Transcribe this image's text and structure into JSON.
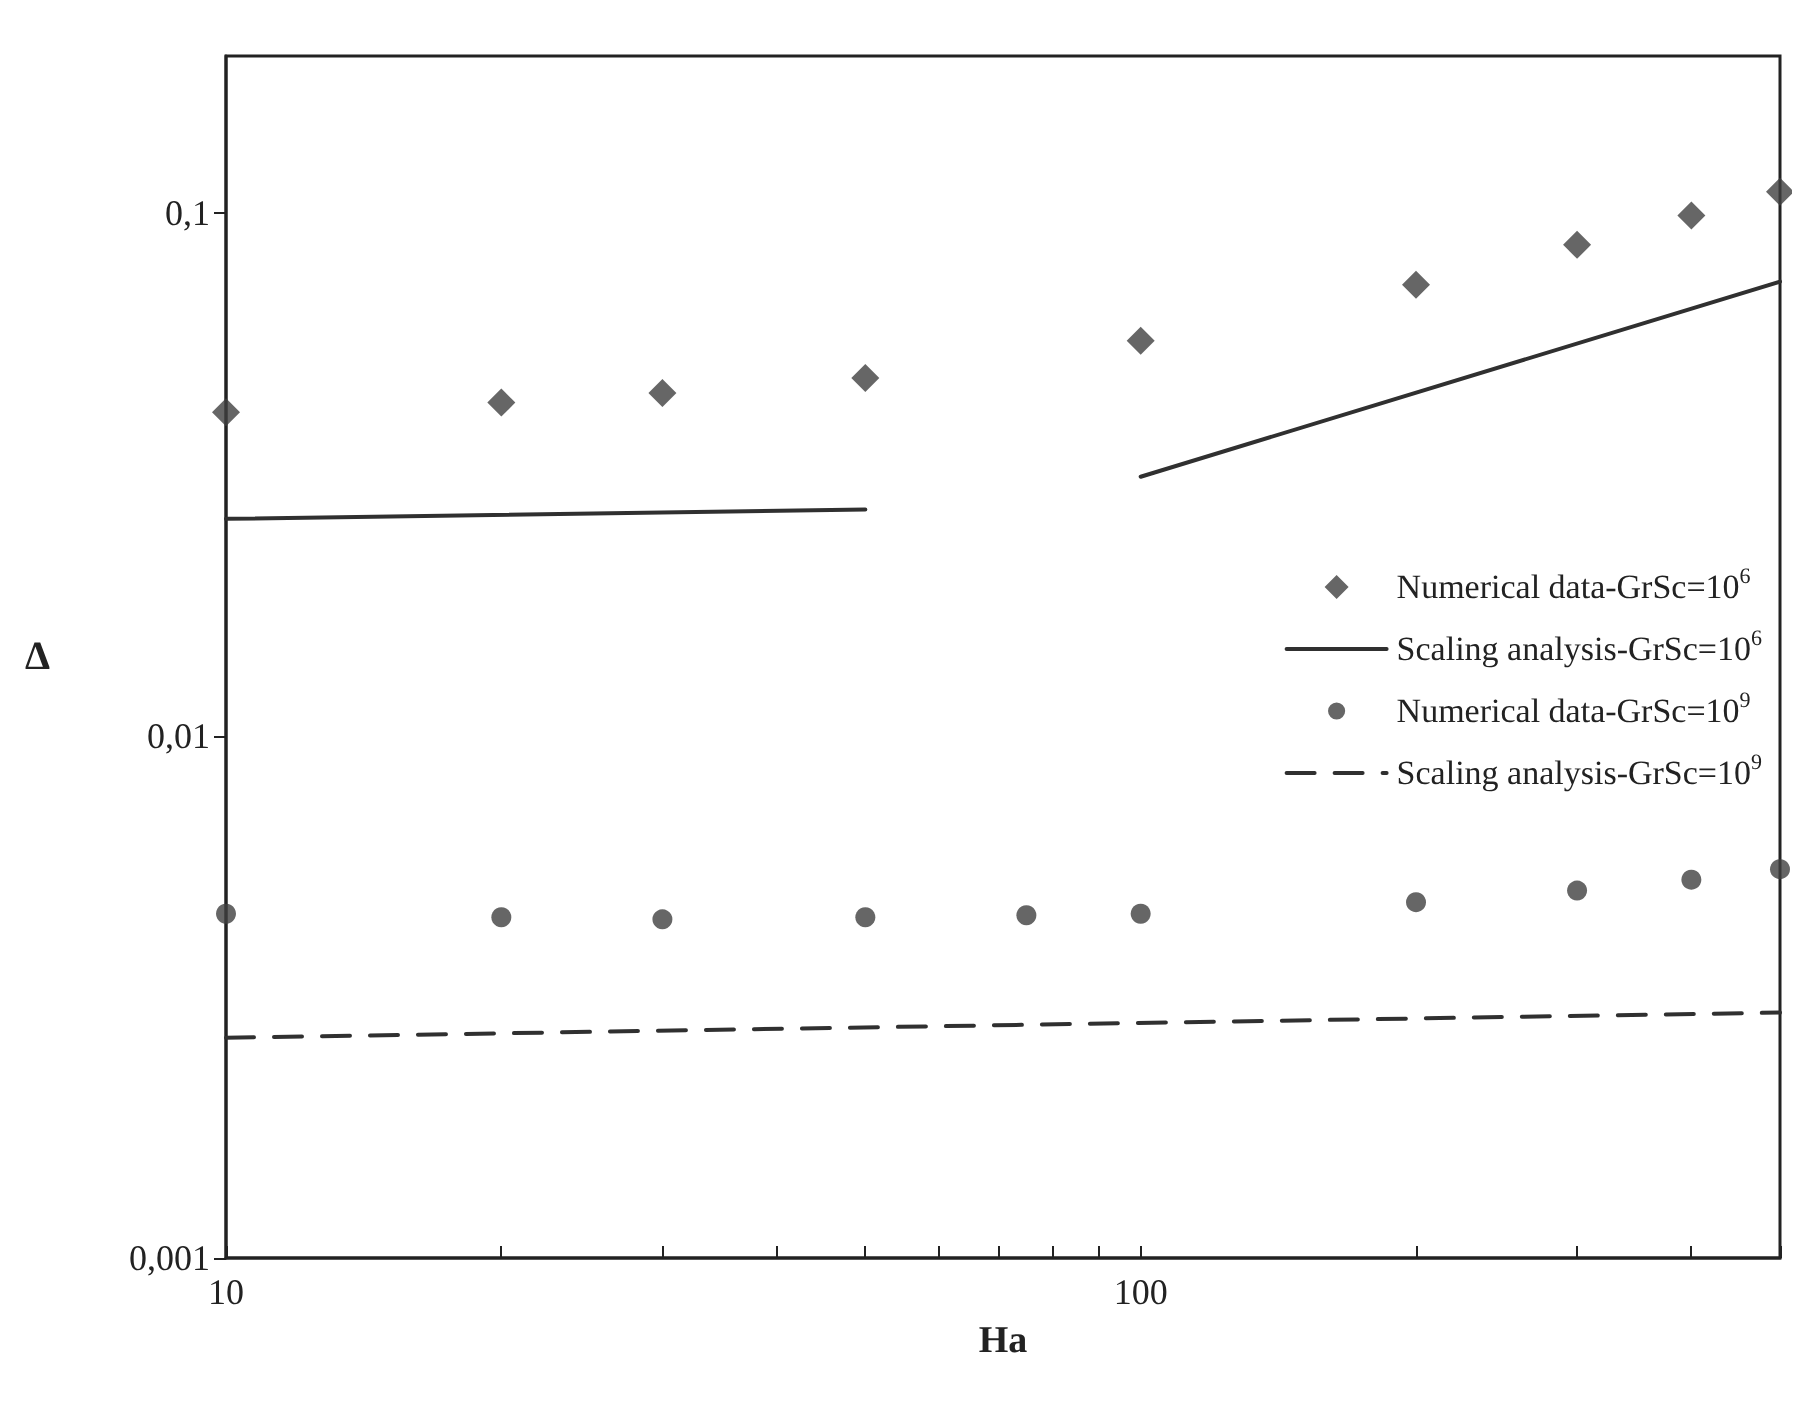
{
  "chart_data": {
    "type": "scatter",
    "xlabel": "Ha",
    "ylabel": "Δ",
    "log": "xy",
    "grid": false,
    "legend": "right",
    "xlim": [
      10,
      500
    ],
    "ylim": [
      0.001,
      0.2
    ],
    "xticks": [
      10,
      {
        "value": 20,
        "label": null
      },
      {
        "value": 30,
        "label": null
      },
      {
        "value": 40,
        "label": null
      },
      {
        "value": 50,
        "label": null
      },
      {
        "value": 60,
        "label": null
      },
      {
        "value": 70,
        "label": null
      },
      {
        "value": 80,
        "label": null
      },
      {
        "value": 90,
        "label": null
      },
      100,
      {
        "value": 200,
        "label": null
      },
      {
        "value": 300,
        "label": null
      },
      {
        "value": 400,
        "label": null
      },
      {
        "value": 500,
        "label": null
      }
    ],
    "yticks": [
      {
        "value": 0.001,
        "label": "0,001"
      },
      {
        "value": 0.01,
        "label": "0,01"
      },
      {
        "value": 0.1,
        "label": "0,1"
      }
    ],
    "x": [
      10,
      20,
      30,
      50,
      75,
      100,
      200,
      300,
      400,
      500
    ],
    "series": [
      {
        "name": "Numerical data-GrSc=10$^{6}$",
        "marker": "diamond",
        "color": "#404040",
        "x": [
          10,
          20,
          30,
          50,
          100,
          200,
          300,
          400,
          500
        ],
        "values": [
          0.0416,
          0.0434,
          0.0453,
          0.0484,
          0.057,
          0.073,
          0.087,
          0.099,
          0.11
        ]
      },
      {
        "name": "Scaling analysis-GrSc=10$^{6}$",
        "type": "line",
        "line_style": "solid",
        "marker": "none",
        "color": "#303030",
        "x": [
          10,
          50,
          70,
          100,
          500
        ],
        "values": [
          0.026,
          0.0271,
          null,
          0.0313,
          0.074
        ]
      },
      {
        "name": "Numerical data-GrSc=10$^{9}$",
        "marker": "circle",
        "color": "#404040",
        "values": [
          0.00456,
          0.00449,
          0.00445,
          0.00449,
          0.00453,
          0.00456,
          0.0048,
          0.00505,
          0.0053,
          0.00555
        ]
      },
      {
        "name": "Scaling analysis-GrSc=10$^{9}$",
        "type": "line",
        "line_style": "dashed",
        "marker": "none",
        "color": "#303030",
        "x": [
          10,
          500
        ],
        "values": [
          0.00264,
          0.00295
        ]
      }
    ]
  }
}
